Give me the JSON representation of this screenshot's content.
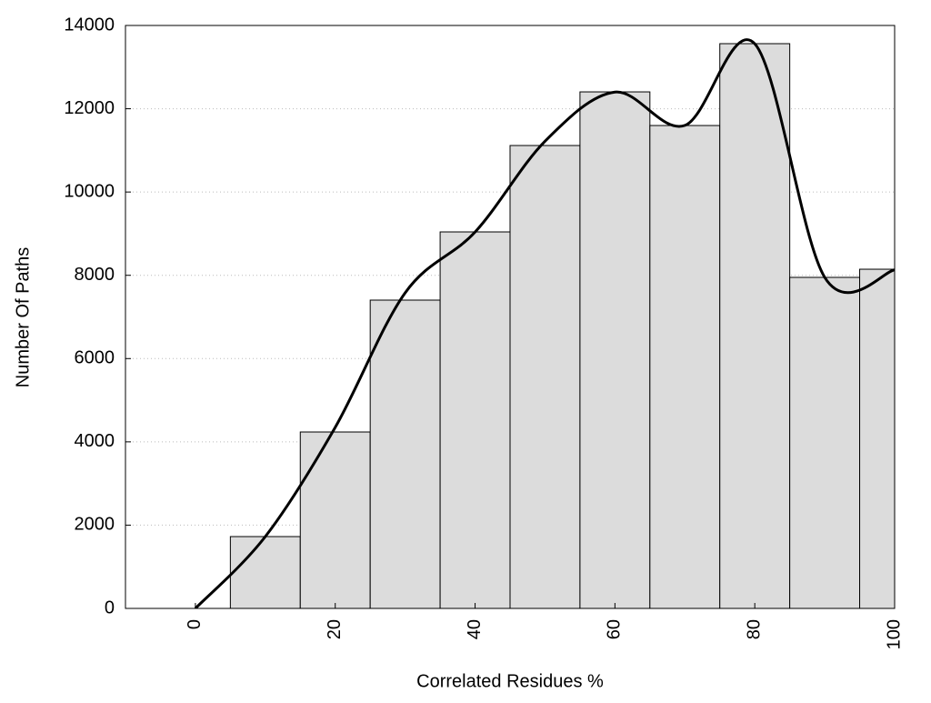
{
  "chart_data": {
    "type": "histogram",
    "xlabel": "Correlated Residues %",
    "ylabel": "Number Of Paths",
    "bins": [
      -5,
      5,
      15,
      25,
      35,
      45,
      55,
      65,
      75,
      85,
      95,
      105
    ],
    "values": [
      0,
      1725,
      4237,
      7404,
      9042,
      11117,
      12405,
      11597,
      13563,
      7950,
      8146
    ],
    "bar_color": "#dcdcdc",
    "line": {
      "x": [
        0,
        10,
        20,
        30,
        40,
        50,
        60,
        70,
        80,
        90,
        100
      ],
      "values": [
        0,
        1725,
        4350,
        7580,
        9040,
        11220,
        12400,
        11600,
        13560,
        7950,
        8130
      ],
      "color": "#000000"
    },
    "xlim": [
      -10,
      100
    ],
    "ylim": [
      0,
      14000
    ],
    "xticks": [
      0,
      20,
      40,
      60,
      80,
      100
    ],
    "yticks": [
      0,
      2000,
      4000,
      6000,
      8000,
      10000,
      12000,
      14000
    ],
    "grid": true
  }
}
